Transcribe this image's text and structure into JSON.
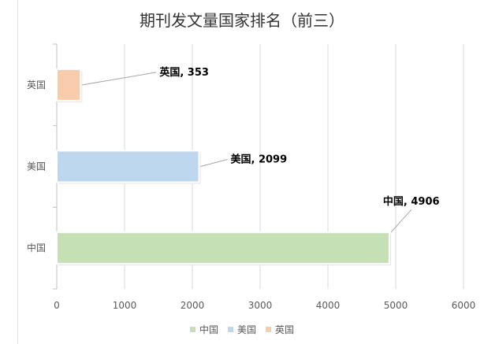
{
  "chart_data": {
    "type": "bar",
    "orientation": "horizontal",
    "title": "期刊发文量国家排名（前三）",
    "categories": [
      "中国",
      "美国",
      "英国"
    ],
    "values": [
      4906,
      2099,
      353
    ],
    "data_labels": [
      "中国, 4906",
      "美国, 2099",
      "英国, 353"
    ],
    "colors": [
      "#c5e0b4",
      "#bdd7ee",
      "#f8cbad"
    ],
    "xlim": [
      0,
      6000
    ],
    "xticks": [
      "0",
      "1000",
      "2000",
      "3000",
      "4000",
      "5000",
      "6000"
    ],
    "grid": true,
    "legend": {
      "position": "bottom",
      "entries": [
        "中国",
        "美国",
        "英国"
      ]
    }
  }
}
